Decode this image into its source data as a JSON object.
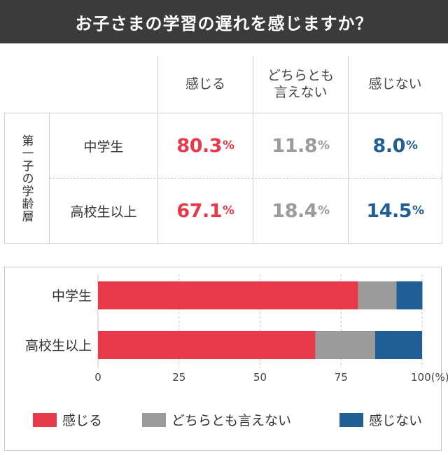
{
  "title": "お子さまの学習の遅れを感じますか？",
  "table": {
    "group_label": "第一子の学齢層",
    "columns": [
      "感じる",
      "どちらとも\n言えない",
      "感じない"
    ],
    "rows": [
      {
        "label": "中学生",
        "values": [
          "80.3",
          "11.8",
          "8.0"
        ],
        "unit": "%"
      },
      {
        "label": "高校生以上",
        "values": [
          "67.1",
          "18.4",
          "14.5"
        ],
        "unit": "%"
      }
    ]
  },
  "colors": {
    "red": "#e8394a",
    "gray": "#9b9b9b",
    "blue": "#1f5f95"
  },
  "chart_data": {
    "type": "bar",
    "orientation": "horizontal",
    "stacked": true,
    "categories": [
      "中学生",
      "高校生以上"
    ],
    "series": [
      {
        "name": "感じる",
        "values": [
          80.3,
          67.1
        ],
        "color": "#e8394a"
      },
      {
        "name": "どちらとも言えない",
        "values": [
          11.8,
          18.4
        ],
        "color": "#9b9b9b"
      },
      {
        "name": "感じない",
        "values": [
          8.0,
          14.5
        ],
        "color": "#1f5f95"
      }
    ],
    "xlim": [
      0,
      100
    ],
    "xticks": [
      "0",
      "25",
      "50",
      "75",
      "100(%)"
    ],
    "grid": true,
    "legend": "bottom"
  }
}
